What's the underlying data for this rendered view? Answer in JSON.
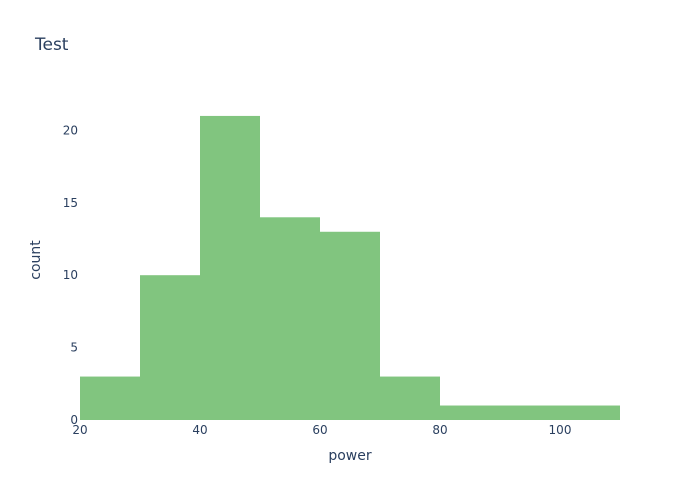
{
  "chart_data": {
    "type": "bar",
    "title": "Test",
    "xlabel": "power",
    "ylabel": "count",
    "bins": [
      {
        "start": 20,
        "end": 30,
        "count": 3
      },
      {
        "start": 30,
        "end": 40,
        "count": 10
      },
      {
        "start": 40,
        "end": 50,
        "count": 21
      },
      {
        "start": 50,
        "end": 60,
        "count": 14
      },
      {
        "start": 60,
        "end": 70,
        "count": 13
      },
      {
        "start": 70,
        "end": 80,
        "count": 3
      },
      {
        "start": 80,
        "end": 90,
        "count": 1
      },
      {
        "start": 90,
        "end": 100,
        "count": 1
      },
      {
        "start": 100,
        "end": 110,
        "count": 1
      }
    ],
    "xlim": [
      20,
      110
    ],
    "ylim": [
      0,
      22.1
    ],
    "xticks": [
      20,
      40,
      60,
      80,
      100
    ],
    "yticks": [
      0,
      5,
      10,
      15,
      20
    ],
    "bar_color": "#81c57f",
    "grid": false,
    "legend": "none"
  }
}
